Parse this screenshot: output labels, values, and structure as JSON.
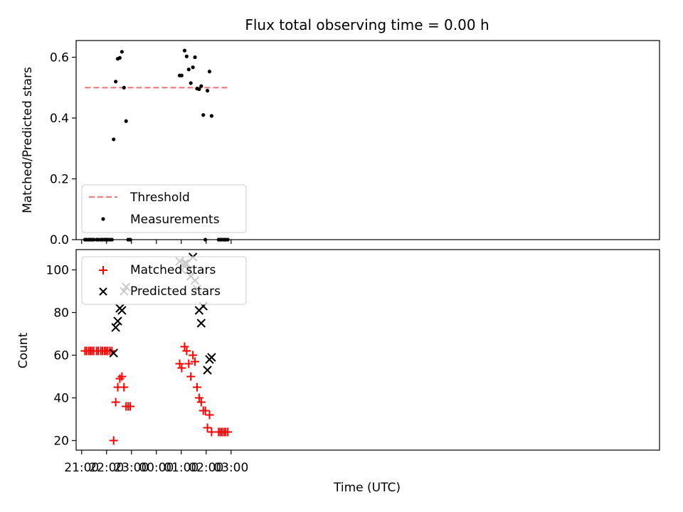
{
  "chart_data": [
    {
      "type": "scatter",
      "title": "Flux total observing time = 0.00 h",
      "ylabel": "Matched/Predicted stars",
      "xlabel": "",
      "x_range_minutes_from_21": [
        -13.3,
        1392
      ],
      "ylim": [
        0,
        0.655
      ],
      "yticks": [
        0.0,
        0.2,
        0.4,
        0.6
      ],
      "ytick_labels": [
        "0.0",
        "0.2",
        "0.4",
        "0.6"
      ],
      "grid": false,
      "legend": {
        "placement": "lower-left",
        "entries": [
          {
            "label": "Threshold",
            "series": "threshold"
          },
          {
            "label": "Measurements",
            "series": "measurements"
          }
        ]
      },
      "series": [
        {
          "name": "Threshold",
          "kind": "line",
          "style": "dashed",
          "color": "#f08080",
          "x": [
            "21:08",
            "02:53"
          ],
          "y": [
            0.5,
            0.5
          ]
        },
        {
          "name": "Measurements",
          "kind": "scatter",
          "marker": "dot",
          "color": "#000000",
          "points": [
            [
              "21:08",
              0
            ],
            [
              "21:12",
              0
            ],
            [
              "21:17",
              0
            ],
            [
              "21:21",
              0
            ],
            [
              "21:25",
              0
            ],
            [
              "21:29",
              0
            ],
            [
              "21:36",
              0
            ],
            [
              "21:40",
              0
            ],
            [
              "21:46",
              0
            ],
            [
              "21:50",
              0
            ],
            [
              "21:55",
              0
            ],
            [
              "21:59",
              0
            ],
            [
              "22:03",
              0
            ],
            [
              "22:08",
              0
            ],
            [
              "22:13",
              0
            ],
            [
              "22:17",
              0.33
            ],
            [
              "22:22",
              0.52
            ],
            [
              "22:27",
              0.595
            ],
            [
              "22:32",
              0.598
            ],
            [
              "22:37",
              0.618
            ],
            [
              "22:42",
              0.5
            ],
            [
              "22:47",
              0.39
            ],
            [
              "22:52",
              0
            ],
            [
              "22:57",
              0
            ],
            [
              "00:56",
              0.54
            ],
            [
              "01:01",
              0.54
            ],
            [
              "01:08",
              0.622
            ],
            [
              "01:13",
              0.603
            ],
            [
              "01:18",
              0.56
            ],
            [
              "01:23",
              0.515
            ],
            [
              "01:28",
              0.567
            ],
            [
              "01:33",
              0.6
            ],
            [
              "01:38",
              0.497
            ],
            [
              "01:43",
              0.495
            ],
            [
              "01:48",
              0.505
            ],
            [
              "01:53",
              0.41
            ],
            [
              "01:58",
              0
            ],
            [
              "02:03",
              0.49
            ],
            [
              "02:08",
              0.553
            ],
            [
              "02:13",
              0.407
            ],
            [
              "02:30",
              0
            ],
            [
              "02:34",
              0
            ],
            [
              "02:38",
              0
            ],
            [
              "02:43",
              0
            ],
            [
              "02:47",
              0
            ],
            [
              "02:52",
              0
            ]
          ]
        }
      ]
    },
    {
      "type": "scatter",
      "title": "",
      "ylabel": "Count",
      "xlabel": "Time (UTC)",
      "ylim": [
        15.5,
        109.5
      ],
      "yticks": [
        20,
        40,
        60,
        80,
        100
      ],
      "xticks": [
        "21:00",
        "22:00",
        "23:00",
        "00:00",
        "01:00",
        "02:00",
        "03:00"
      ],
      "grid": false,
      "legend": {
        "placement": "upper-left",
        "entries": [
          {
            "label": "Matched stars",
            "series": "matched"
          },
          {
            "label": "Predicted stars",
            "series": "predicted"
          }
        ]
      },
      "series": [
        {
          "name": "Matched stars",
          "marker": "plus",
          "color": "#ff0000",
          "points": [
            [
              "21:08",
              62
            ],
            [
              "21:12",
              62
            ],
            [
              "21:17",
              62
            ],
            [
              "21:21",
              62
            ],
            [
              "21:25",
              62
            ],
            [
              "21:29",
              62
            ],
            [
              "21:36",
              62
            ],
            [
              "21:40",
              62
            ],
            [
              "21:46",
              62
            ],
            [
              "21:50",
              62
            ],
            [
              "21:55",
              62
            ],
            [
              "21:59",
              62
            ],
            [
              "22:03",
              62
            ],
            [
              "22:08",
              62
            ],
            [
              "22:13",
              62
            ],
            [
              "22:17",
              20
            ],
            [
              "22:22",
              38
            ],
            [
              "22:27",
              45
            ],
            [
              "22:32",
              49
            ],
            [
              "22:37",
              50
            ],
            [
              "22:42",
              45
            ],
            [
              "22:47",
              36
            ],
            [
              "22:52",
              36
            ],
            [
              "22:57",
              36
            ],
            [
              "00:56",
              56
            ],
            [
              "01:01",
              54
            ],
            [
              "01:08",
              64
            ],
            [
              "01:13",
              62
            ],
            [
              "01:18",
              56
            ],
            [
              "01:23",
              50
            ],
            [
              "01:28",
              60
            ],
            [
              "01:33",
              57
            ],
            [
              "01:38",
              45
            ],
            [
              "01:43",
              40
            ],
            [
              "01:48",
              38
            ],
            [
              "01:53",
              34
            ],
            [
              "01:58",
              34
            ],
            [
              "02:03",
              26
            ],
            [
              "02:08",
              32
            ],
            [
              "02:13",
              24
            ],
            [
              "02:30",
              24
            ],
            [
              "02:34",
              24
            ],
            [
              "02:38",
              24
            ],
            [
              "02:43",
              24
            ],
            [
              "02:47",
              24
            ],
            [
              "02:52",
              24
            ]
          ]
        },
        {
          "name": "Predicted stars",
          "marker": "x",
          "color": "#000000",
          "points": [
            [
              "22:17",
              61
            ],
            [
              "22:22",
              73
            ],
            [
              "22:27",
              76
            ],
            [
              "22:32",
              82
            ],
            [
              "22:37",
              81
            ],
            [
              "22:42",
              90
            ],
            [
              "22:47",
              92
            ],
            [
              "00:56",
              104
            ],
            [
              "01:01",
              100
            ],
            [
              "01:08",
              103
            ],
            [
              "01:13",
              103
            ],
            [
              "01:18",
              100
            ],
            [
              "01:23",
              97
            ],
            [
              "01:28",
              106
            ],
            [
              "01:33",
              95
            ],
            [
              "01:38",
              91
            ],
            [
              "01:43",
              81
            ],
            [
              "01:48",
              75
            ],
            [
              "01:53",
              83
            ],
            [
              "02:03",
              53
            ],
            [
              "02:08",
              58
            ],
            [
              "02:13",
              59
            ]
          ]
        }
      ]
    }
  ]
}
